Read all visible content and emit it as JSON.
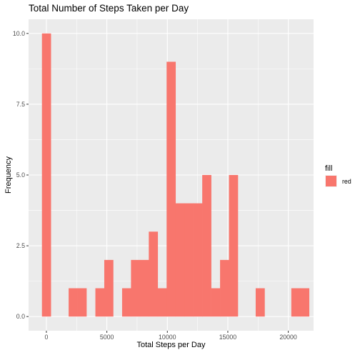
{
  "chart_data": {
    "type": "bar",
    "title": "Total Number of Steps Taken per Day",
    "xlabel": "Total Steps per Day",
    "ylabel": "Frequency",
    "bin_width": 736.3,
    "bin_starts": [
      -368.2,
      368.2,
      1104.5,
      1840.8,
      2577.1,
      3313.4,
      4049.7,
      4786.0,
      5522.4,
      6258.7,
      6995.0,
      7731.3,
      8467.6,
      9203.9,
      9940.2,
      10676.5,
      11412.9,
      12149.2,
      12885.5,
      13621.8,
      14358.1,
      15094.4,
      15830.7,
      16567.0,
      17303.4,
      18039.7,
      18776.0,
      19512.3,
      20248.6,
      20984.9
    ],
    "values": [
      10,
      0,
      0,
      1,
      1,
      0,
      1,
      2,
      0,
      1,
      2,
      2,
      3,
      1,
      9,
      4,
      4,
      4,
      5,
      1,
      2,
      5,
      0,
      0,
      1,
      0,
      0,
      0,
      1,
      1
    ],
    "xlim": [
      -1473,
      22090
    ],
    "ylim": [
      -0.5,
      10.5
    ],
    "xticks": [
      0,
      5000,
      10000,
      15000,
      20000
    ],
    "xtick_labels": [
      "0",
      "5000",
      "10000",
      "15000",
      "20000"
    ],
    "yticks": [
      0,
      2.5,
      5,
      7.5,
      10
    ],
    "ytick_labels": [
      "0.0",
      "2.5",
      "5.0",
      "7.5",
      "10.0"
    ],
    "grid": true,
    "fill_color": "#F8766D",
    "panel_color": "#EBEBEB",
    "grid_color": "#FFFFFF",
    "legend": {
      "title": "fill",
      "items": [
        {
          "label": "red",
          "color": "#F8766D"
        }
      ],
      "position": "right"
    }
  }
}
